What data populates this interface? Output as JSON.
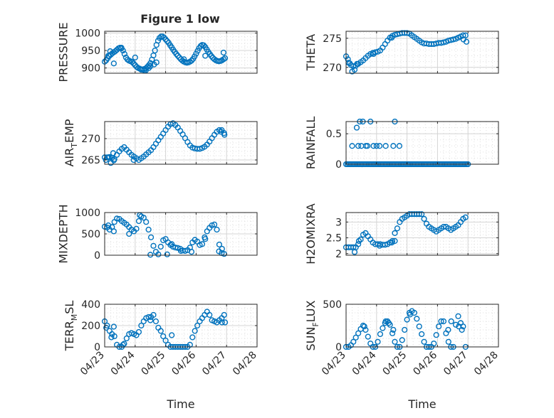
{
  "figure": {
    "title": "Figure 1 low",
    "marker_color": "#0072BD",
    "axes_color": "#262626",
    "grid_color": "#dfdfdf"
  },
  "chart_data": [
    {
      "type": "scatter",
      "ylabel": "PRESSURE",
      "ylabel_sub": "",
      "ylabel_rest": "",
      "xlabel": "",
      "ylim": [
        885,
        1005
      ],
      "yticks": [
        900,
        950,
        1000
      ],
      "xlim": [
        0,
        5
      ],
      "xticks": [
        0,
        1,
        2,
        3,
        4,
        5
      ],
      "xticklabels": [
        "04/23",
        "04/24",
        "04/25",
        "04/26",
        "04/27",
        "04/28"
      ],
      "show_xticklabels": false,
      "x": [
        0.0,
        0.05,
        0.1,
        0.15,
        0.2,
        0.25,
        0.3,
        0.35,
        0.4,
        0.45,
        0.5,
        0.55,
        0.6,
        0.65,
        0.7,
        0.75,
        0.8,
        0.85,
        0.9,
        0.95,
        1.0,
        1.05,
        1.1,
        1.15,
        1.2,
        1.25,
        1.3,
        1.35,
        1.4,
        1.45,
        1.5,
        1.55,
        1.6,
        1.65,
        1.7,
        1.75,
        1.8,
        1.85,
        1.9,
        1.95,
        2.0,
        2.05,
        2.1,
        2.15,
        2.2,
        2.25,
        2.3,
        2.35,
        2.4,
        2.45,
        2.5,
        2.55,
        2.6,
        2.65,
        2.7,
        2.75,
        2.8,
        2.85,
        2.9,
        2.95,
        3.0,
        3.05,
        3.1,
        3.15,
        3.2,
        3.25,
        3.3,
        3.35,
        3.4,
        3.45,
        3.5,
        3.55,
        3.6,
        3.65,
        3.7,
        3.75,
        3.8,
        3.85,
        3.9,
        3.95,
        0.12,
        0.18,
        0.3,
        0.55,
        1.0,
        1.2,
        1.3,
        1.35,
        1.45,
        1.5,
        1.62,
        1.7,
        2.6,
        3.3,
        3.9
      ],
      "y": [
        918,
        922,
        928,
        934,
        938,
        942,
        945,
        948,
        952,
        956,
        958,
        956,
        950,
        940,
        930,
        924,
        921,
        919,
        917,
        913,
        908,
        903,
        900,
        898,
        896,
        896,
        897,
        899,
        903,
        908,
        914,
        924,
        936,
        950,
        966,
        978,
        986,
        990,
        990,
        987,
        982,
        977,
        972,
        965,
        959,
        952,
        946,
        940,
        935,
        930,
        925,
        921,
        918,
        916,
        915,
        916,
        918,
        921,
        926,
        933,
        941,
        949,
        957,
        963,
        966,
        965,
        960,
        953,
        946,
        940,
        934,
        929,
        925,
        922,
        920,
        919,
        920,
        922,
        925,
        928,
        935,
        948,
        913,
        958,
        930,
        895,
        893,
        893,
        900,
        905,
        910,
        916,
        925,
        935,
        944
      ]
    },
    {
      "type": "scatter",
      "ylabel": "THETA",
      "ylabel_sub": "",
      "ylabel_rest": "",
      "xlabel": "",
      "ylim": [
        269,
        276.2
      ],
      "yticks": [
        270,
        275
      ],
      "xlim": [
        0,
        5
      ],
      "xticks": [
        0,
        1,
        2,
        3,
        4,
        5
      ],
      "xticklabels": [
        "04/23",
        "04/24",
        "04/25",
        "04/26",
        "04/27",
        "04/28"
      ],
      "show_xticklabels": false,
      "x": [
        0.0,
        0.08,
        0.16,
        0.24,
        0.32,
        0.4,
        0.48,
        0.56,
        0.64,
        0.72,
        0.8,
        0.88,
        0.96,
        1.04,
        1.12,
        1.2,
        1.28,
        1.36,
        1.44,
        1.52,
        1.6,
        1.68,
        1.76,
        1.84,
        1.92,
        2.0,
        2.08,
        2.16,
        2.24,
        2.32,
        2.4,
        2.48,
        2.56,
        2.64,
        2.72,
        2.8,
        2.88,
        2.96,
        3.04,
        3.12,
        3.2,
        3.28,
        3.36,
        3.44,
        3.52,
        3.6,
        3.68,
        3.76,
        3.84,
        3.92,
        0.06,
        0.12,
        0.2,
        0.28,
        0.36,
        0.9,
        1.5,
        3.85,
        3.95
      ],
      "y": [
        271.9,
        270.8,
        270.4,
        270.2,
        270.3,
        270.6,
        270.9,
        271.2,
        271.6,
        272.0,
        272.3,
        272.5,
        272.6,
        272.7,
        272.9,
        273.4,
        274.0,
        274.6,
        275.1,
        275.4,
        275.6,
        275.7,
        275.8,
        275.9,
        275.9,
        275.9,
        275.8,
        275.5,
        275.2,
        274.9,
        274.6,
        274.3,
        274.1,
        274.1,
        274.0,
        274.0,
        274.0,
        274.1,
        274.2,
        274.2,
        274.3,
        274.4,
        274.6,
        274.7,
        274.8,
        274.9,
        275.1,
        275.3,
        275.5,
        275.5,
        271.4,
        270.7,
        269.3,
        269.6,
        270.6,
        272.3,
        275.1,
        274.8,
        274.4
      ]
    },
    {
      "type": "scatter",
      "ylabel": "AIR",
      "ylabel_sub": "T",
      "ylabel_rest": "EMP",
      "xlabel": "",
      "ylim": [
        264,
        274
      ],
      "yticks": [
        265,
        270
      ],
      "xlim": [
        0,
        5
      ],
      "xticks": [
        0,
        1,
        2,
        3,
        4,
        5
      ],
      "xticklabels": [
        "04/23",
        "04/24",
        "04/25",
        "04/26",
        "04/27",
        "04/28"
      ],
      "show_xticklabels": false,
      "x": [
        0.0,
        0.08,
        0.16,
        0.24,
        0.32,
        0.4,
        0.48,
        0.56,
        0.64,
        0.72,
        0.8,
        0.88,
        0.96,
        1.04,
        1.12,
        1.2,
        1.28,
        1.36,
        1.44,
        1.52,
        1.6,
        1.68,
        1.76,
        1.84,
        1.92,
        2.0,
        2.08,
        2.16,
        2.24,
        2.32,
        2.4,
        2.48,
        2.56,
        2.64,
        2.72,
        2.8,
        2.88,
        2.96,
        3.04,
        3.12,
        3.2,
        3.28,
        3.36,
        3.44,
        3.52,
        3.6,
        3.68,
        3.76,
        3.84,
        3.92,
        0.04,
        0.12,
        0.2,
        0.28,
        0.3,
        0.95,
        3.82,
        3.93
      ],
      "y": [
        265.6,
        265.6,
        265.7,
        265.5,
        265.2,
        266.2,
        267.0,
        267.6,
        268.0,
        267.4,
        266.8,
        266.2,
        265.8,
        265.4,
        265.0,
        265.4,
        265.8,
        266.3,
        266.8,
        267.3,
        268.0,
        268.8,
        269.6,
        270.4,
        271.2,
        272.0,
        272.8,
        273.4,
        273.6,
        273.2,
        272.6,
        271.8,
        271.0,
        270.1,
        269.2,
        268.4,
        267.9,
        267.7,
        267.6,
        267.6,
        267.8,
        268.1,
        268.6,
        269.3,
        270.1,
        270.9,
        271.6,
        272.0,
        272.0,
        271.3,
        265.0,
        265.6,
        264.3,
        266.6,
        264.9,
        265.0,
        271.6,
        270.9
      ]
    },
    {
      "type": "scatter",
      "ylabel": "RAINFALL",
      "ylabel_sub": "",
      "ylabel_rest": "",
      "xlabel": "",
      "ylim": [
        0,
        0.7
      ],
      "yticks": [
        0,
        0.5
      ],
      "xlim": [
        0,
        5
      ],
      "xticks": [
        0,
        1,
        2,
        3,
        4,
        5
      ],
      "xticklabels": [
        "04/23",
        "04/24",
        "04/25",
        "04/26",
        "04/27",
        "04/28"
      ],
      "show_xticklabels": false,
      "x": [
        0.0,
        0.05,
        0.1,
        0.15,
        0.2,
        0.25,
        0.3,
        0.35,
        0.4,
        0.45,
        0.5,
        0.55,
        0.6,
        0.65,
        0.7,
        0.75,
        0.8,
        0.85,
        0.9,
        0.95,
        1.0,
        1.05,
        1.1,
        1.15,
        1.2,
        1.25,
        1.3,
        1.35,
        1.4,
        1.45,
        1.5,
        1.55,
        1.6,
        1.65,
        1.7,
        1.75,
        1.8,
        1.85,
        1.9,
        1.95,
        2.0,
        2.05,
        2.1,
        2.15,
        2.2,
        2.25,
        2.3,
        2.35,
        2.4,
        2.45,
        2.5,
        2.55,
        2.6,
        2.65,
        2.7,
        2.75,
        2.8,
        2.85,
        2.9,
        2.95,
        3.0,
        3.05,
        3.1,
        3.15,
        3.2,
        3.25,
        3.3,
        3.35,
        3.4,
        3.45,
        3.5,
        3.55,
        3.6,
        3.65,
        3.7,
        3.75,
        3.8,
        3.85,
        3.9,
        3.95,
        4.0,
        0.2,
        0.35,
        0.45,
        0.55,
        0.4,
        0.5,
        0.65,
        0.8,
        0.7,
        0.9,
        1.0,
        1.1,
        1.3,
        1.6,
        1.55,
        1.75
      ],
      "y": [
        0,
        0,
        0,
        0,
        0,
        0,
        0,
        0,
        0,
        0,
        0,
        0,
        0,
        0,
        0,
        0,
        0,
        0,
        0,
        0,
        0,
        0,
        0,
        0,
        0,
        0,
        0,
        0,
        0,
        0,
        0,
        0,
        0,
        0,
        0,
        0,
        0,
        0,
        0,
        0,
        0,
        0,
        0,
        0,
        0,
        0,
        0,
        0,
        0,
        0,
        0,
        0,
        0,
        0,
        0,
        0,
        0,
        0,
        0,
        0,
        0,
        0,
        0,
        0,
        0,
        0,
        0,
        0,
        0,
        0,
        0,
        0,
        0,
        0,
        0,
        0,
        0,
        0,
        0,
        0,
        0,
        0.3,
        0.6,
        0.7,
        0.7,
        0.3,
        0.3,
        0.3,
        0.7,
        0.3,
        0.3,
        0.3,
        0.3,
        0.3,
        0.7,
        0.3,
        0.3
      ]
    },
    {
      "type": "scatter",
      "ylabel": "MIXDEPTH",
      "ylabel_sub": "",
      "ylabel_rest": "",
      "xlabel": "",
      "ylim": [
        0,
        1000
      ],
      "yticks": [
        0,
        500,
        1000
      ],
      "xlim": [
        0,
        5
      ],
      "xticks": [
        0,
        1,
        2,
        3,
        4,
        5
      ],
      "xticklabels": [
        "04/23",
        "04/24",
        "04/25",
        "04/26",
        "04/27",
        "04/28"
      ],
      "show_xticklabels": false,
      "x": [
        0.0,
        0.08,
        0.16,
        0.24,
        0.32,
        0.4,
        0.48,
        0.56,
        0.64,
        0.72,
        0.8,
        0.88,
        0.96,
        1.04,
        1.12,
        1.2,
        1.28,
        1.36,
        1.44,
        1.52,
        1.6,
        1.68,
        1.76,
        1.84,
        1.92,
        2.0,
        2.08,
        2.16,
        2.24,
        2.32,
        2.4,
        2.48,
        2.56,
        2.64,
        2.72,
        2.8,
        2.88,
        2.96,
        3.04,
        3.12,
        3.2,
        3.28,
        3.36,
        3.44,
        3.52,
        3.6,
        3.68,
        3.76,
        3.84,
        3.92,
        0.12,
        0.3,
        0.8,
        1.15,
        1.5,
        2.05,
        2.2,
        2.5,
        2.85,
        3.3,
        3.75,
        3.85
      ],
      "y": [
        670,
        650,
        600,
        660,
        780,
        860,
        850,
        800,
        760,
        720,
        660,
        600,
        560,
        620,
        800,
        910,
        880,
        780,
        600,
        420,
        220,
        80,
        20,
        200,
        350,
        380,
        300,
        240,
        200,
        180,
        170,
        150,
        110,
        100,
        120,
        180,
        300,
        360,
        320,
        240,
        260,
        420,
        560,
        640,
        700,
        720,
        600,
        250,
        50,
        30,
        700,
        560,
        500,
        940,
        10,
        20,
        260,
        100,
        80,
        380,
        90,
        150
      ]
    },
    {
      "type": "scatter",
      "ylabel": "H2OMIXRA",
      "ylabel_sub": "",
      "ylabel_rest": "",
      "xlabel": "",
      "ylim": [
        1.95,
        3.3
      ],
      "yticks": [
        2,
        2.5,
        3
      ],
      "xlim": [
        0,
        5
      ],
      "xticks": [
        0,
        1,
        2,
        3,
        4,
        5
      ],
      "xticklabels": [
        "04/23",
        "04/24",
        "04/25",
        "04/26",
        "04/27",
        "04/28"
      ],
      "show_xticklabels": false,
      "x": [
        0.0,
        0.08,
        0.16,
        0.24,
        0.32,
        0.4,
        0.48,
        0.56,
        0.64,
        0.72,
        0.8,
        0.88,
        0.96,
        1.04,
        1.12,
        1.2,
        1.28,
        1.36,
        1.44,
        1.52,
        1.6,
        1.68,
        1.76,
        1.84,
        1.92,
        2.0,
        2.08,
        2.16,
        2.24,
        2.32,
        2.4,
        2.48,
        2.56,
        2.64,
        2.72,
        2.8,
        2.88,
        2.96,
        3.04,
        3.12,
        3.2,
        3.28,
        3.36,
        3.44,
        3.52,
        3.6,
        3.68,
        3.76,
        3.84,
        3.92,
        0.28,
        0.42,
        1.1,
        1.5,
        1.6
      ],
      "y": [
        2.2,
        2.2,
        2.2,
        2.2,
        2.2,
        2.3,
        2.45,
        2.6,
        2.65,
        2.55,
        2.45,
        2.35,
        2.3,
        2.3,
        2.3,
        2.28,
        2.28,
        2.3,
        2.35,
        2.4,
        2.4,
        2.8,
        3.0,
        3.1,
        3.15,
        3.2,
        3.25,
        3.25,
        3.25,
        3.25,
        3.25,
        3.25,
        3.1,
        2.95,
        2.85,
        2.8,
        2.75,
        2.7,
        2.75,
        2.8,
        2.85,
        2.85,
        2.8,
        2.75,
        2.8,
        2.85,
        2.9,
        3.0,
        3.1,
        3.15,
        2.05,
        2.4,
        2.25,
        2.35,
        2.65
      ]
    },
    {
      "type": "scatter",
      "ylabel": "TERR",
      "ylabel_sub": "M",
      "ylabel_rest": "SL",
      "xlabel": "Time",
      "ylim": [
        0,
        400
      ],
      "yticks": [
        0,
        200,
        400
      ],
      "xlim": [
        0,
        5
      ],
      "xticks": [
        0,
        1,
        2,
        3,
        4,
        5
      ],
      "xticklabels": [
        "04/23",
        "04/24",
        "04/25",
        "04/26",
        "04/27",
        "04/28"
      ],
      "show_xticklabels": true,
      "x": [
        0.0,
        0.08,
        0.16,
        0.24,
        0.32,
        0.4,
        0.48,
        0.56,
        0.64,
        0.72,
        0.8,
        0.88,
        0.96,
        1.04,
        1.12,
        1.2,
        1.28,
        1.36,
        1.44,
        1.52,
        1.6,
        1.68,
        1.76,
        1.84,
        1.92,
        2.0,
        2.08,
        2.16,
        2.24,
        2.32,
        2.4,
        2.48,
        2.56,
        2.64,
        2.72,
        2.8,
        2.88,
        2.96,
        3.04,
        3.12,
        3.2,
        3.28,
        3.36,
        3.44,
        3.52,
        3.6,
        3.68,
        3.76,
        3.84,
        3.92,
        0.05,
        0.22,
        0.3,
        0.6,
        1.5,
        2.2,
        3.85,
        3.95
      ],
      "y": [
        240,
        200,
        150,
        120,
        100,
        20,
        0,
        0,
        30,
        80,
        120,
        130,
        120,
        110,
        140,
        200,
        240,
        270,
        280,
        280,
        300,
        240,
        180,
        150,
        100,
        60,
        20,
        0,
        0,
        0,
        0,
        0,
        0,
        0,
        0,
        20,
        90,
        150,
        200,
        240,
        270,
        300,
        330,
        300,
        250,
        240,
        230,
        250,
        270,
        300,
        180,
        90,
        190,
        20,
        250,
        110,
        230,
        230
      ]
    },
    {
      "type": "scatter",
      "ylabel": "SUN",
      "ylabel_sub": "F",
      "ylabel_rest": "LUX",
      "xlabel": "Time",
      "ylim": [
        0,
        500
      ],
      "yticks": [
        0,
        500
      ],
      "xlim": [
        0,
        5
      ],
      "xticks": [
        0,
        1,
        2,
        3,
        4,
        5
      ],
      "xticklabels": [
        "04/23",
        "04/24",
        "04/25",
        "04/26",
        "04/27",
        "04/28"
      ],
      "show_xticklabels": true,
      "x": [
        0.0,
        0.08,
        0.16,
        0.24,
        0.32,
        0.4,
        0.48,
        0.56,
        0.64,
        0.72,
        0.8,
        0.88,
        0.96,
        1.04,
        1.12,
        1.2,
        1.28,
        1.36,
        1.44,
        1.52,
        1.6,
        1.68,
        1.76,
        1.84,
        1.92,
        2.0,
        2.08,
        2.16,
        2.24,
        2.32,
        2.4,
        2.48,
        2.56,
        2.64,
        2.72,
        2.8,
        2.88,
        2.96,
        3.04,
        3.12,
        3.2,
        3.28,
        3.36,
        3.44,
        3.52,
        3.6,
        3.68,
        3.76,
        3.84,
        3.92,
        0.6,
        1.3,
        1.4,
        1.55,
        2.1,
        3.35,
        3.45,
        3.7,
        3.8
      ],
      "y": [
        0,
        0,
        20,
        60,
        110,
        160,
        210,
        250,
        200,
        120,
        40,
        0,
        0,
        60,
        150,
        220,
        280,
        300,
        260,
        160,
        60,
        0,
        0,
        80,
        200,
        320,
        400,
        420,
        400,
        330,
        240,
        150,
        60,
        0,
        0,
        0,
        40,
        140,
        240,
        300,
        300,
        160,
        60,
        0,
        0,
        260,
        360,
        280,
        240,
        0,
        240,
        300,
        280,
        200,
        380,
        200,
        300,
        240,
        200
      ]
    }
  ]
}
